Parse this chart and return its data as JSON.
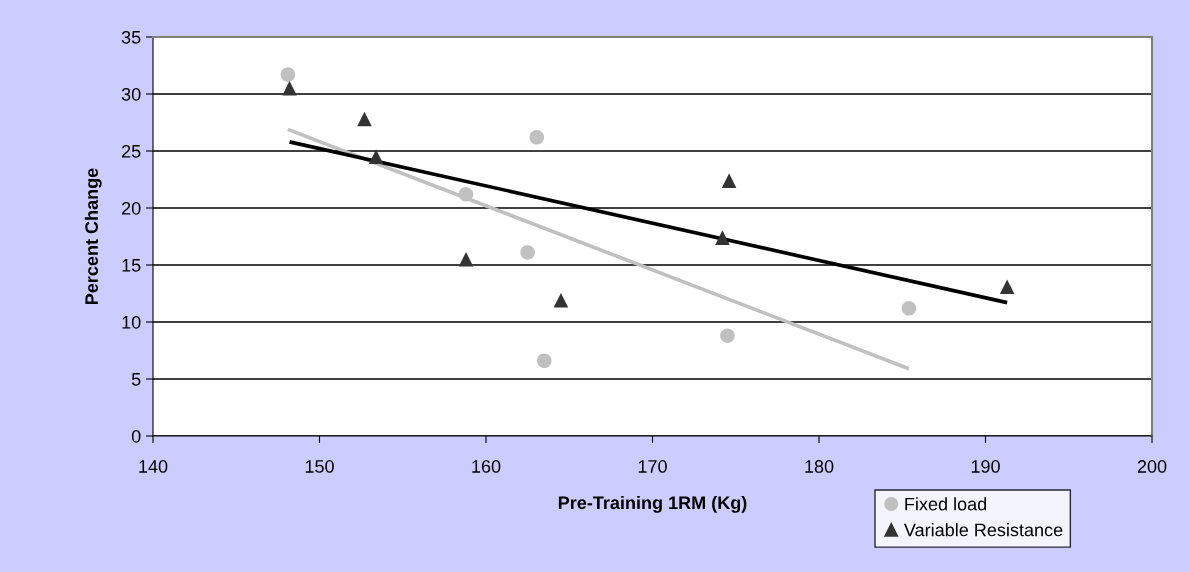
{
  "chart_data": {
    "type": "scatter",
    "xlabel": "Pre-Training 1RM (Kg)",
    "ylabel": "Percent Change",
    "xlim": [
      140,
      200
    ],
    "xticks": [
      140,
      150,
      160,
      170,
      180,
      190,
      200
    ],
    "ylim": [
      0,
      35
    ],
    "yticks": [
      0,
      5,
      10,
      15,
      20,
      25,
      30,
      35
    ],
    "grid": "y",
    "legend": "bottom right",
    "series": [
      {
        "name": "Fixed load",
        "marker": "circle",
        "color": "#c0c0c0",
        "x": [
          148.1,
          158.8,
          163.05,
          162.5,
          163.5,
          174.5,
          185.4
        ],
        "values": [
          31.7,
          21.2,
          26.2,
          16.1,
          6.6,
          8.8,
          11.2
        ]
      },
      {
        "name": "Variable Resistance",
        "marker": "triangle",
        "color": "#333333",
        "x": [
          148.2,
          152.7,
          153.4,
          158.8,
          164.5,
          174.6,
          174.2,
          191.3
        ],
        "values": [
          30.5,
          27.8,
          24.5,
          15.5,
          11.9,
          22.4,
          17.4,
          13.1
        ]
      },
      {
        "type": "line",
        "marker": "none",
        "color": "#c0c0c0",
        "x": [
          148.1,
          185.4
        ],
        "values": [
          26.9,
          5.9
        ]
      },
      {
        "type": "line",
        "marker": "none",
        "color": "#000000",
        "x": [
          148.2,
          191.3
        ],
        "values": [
          25.8,
          11.7
        ]
      }
    ]
  }
}
